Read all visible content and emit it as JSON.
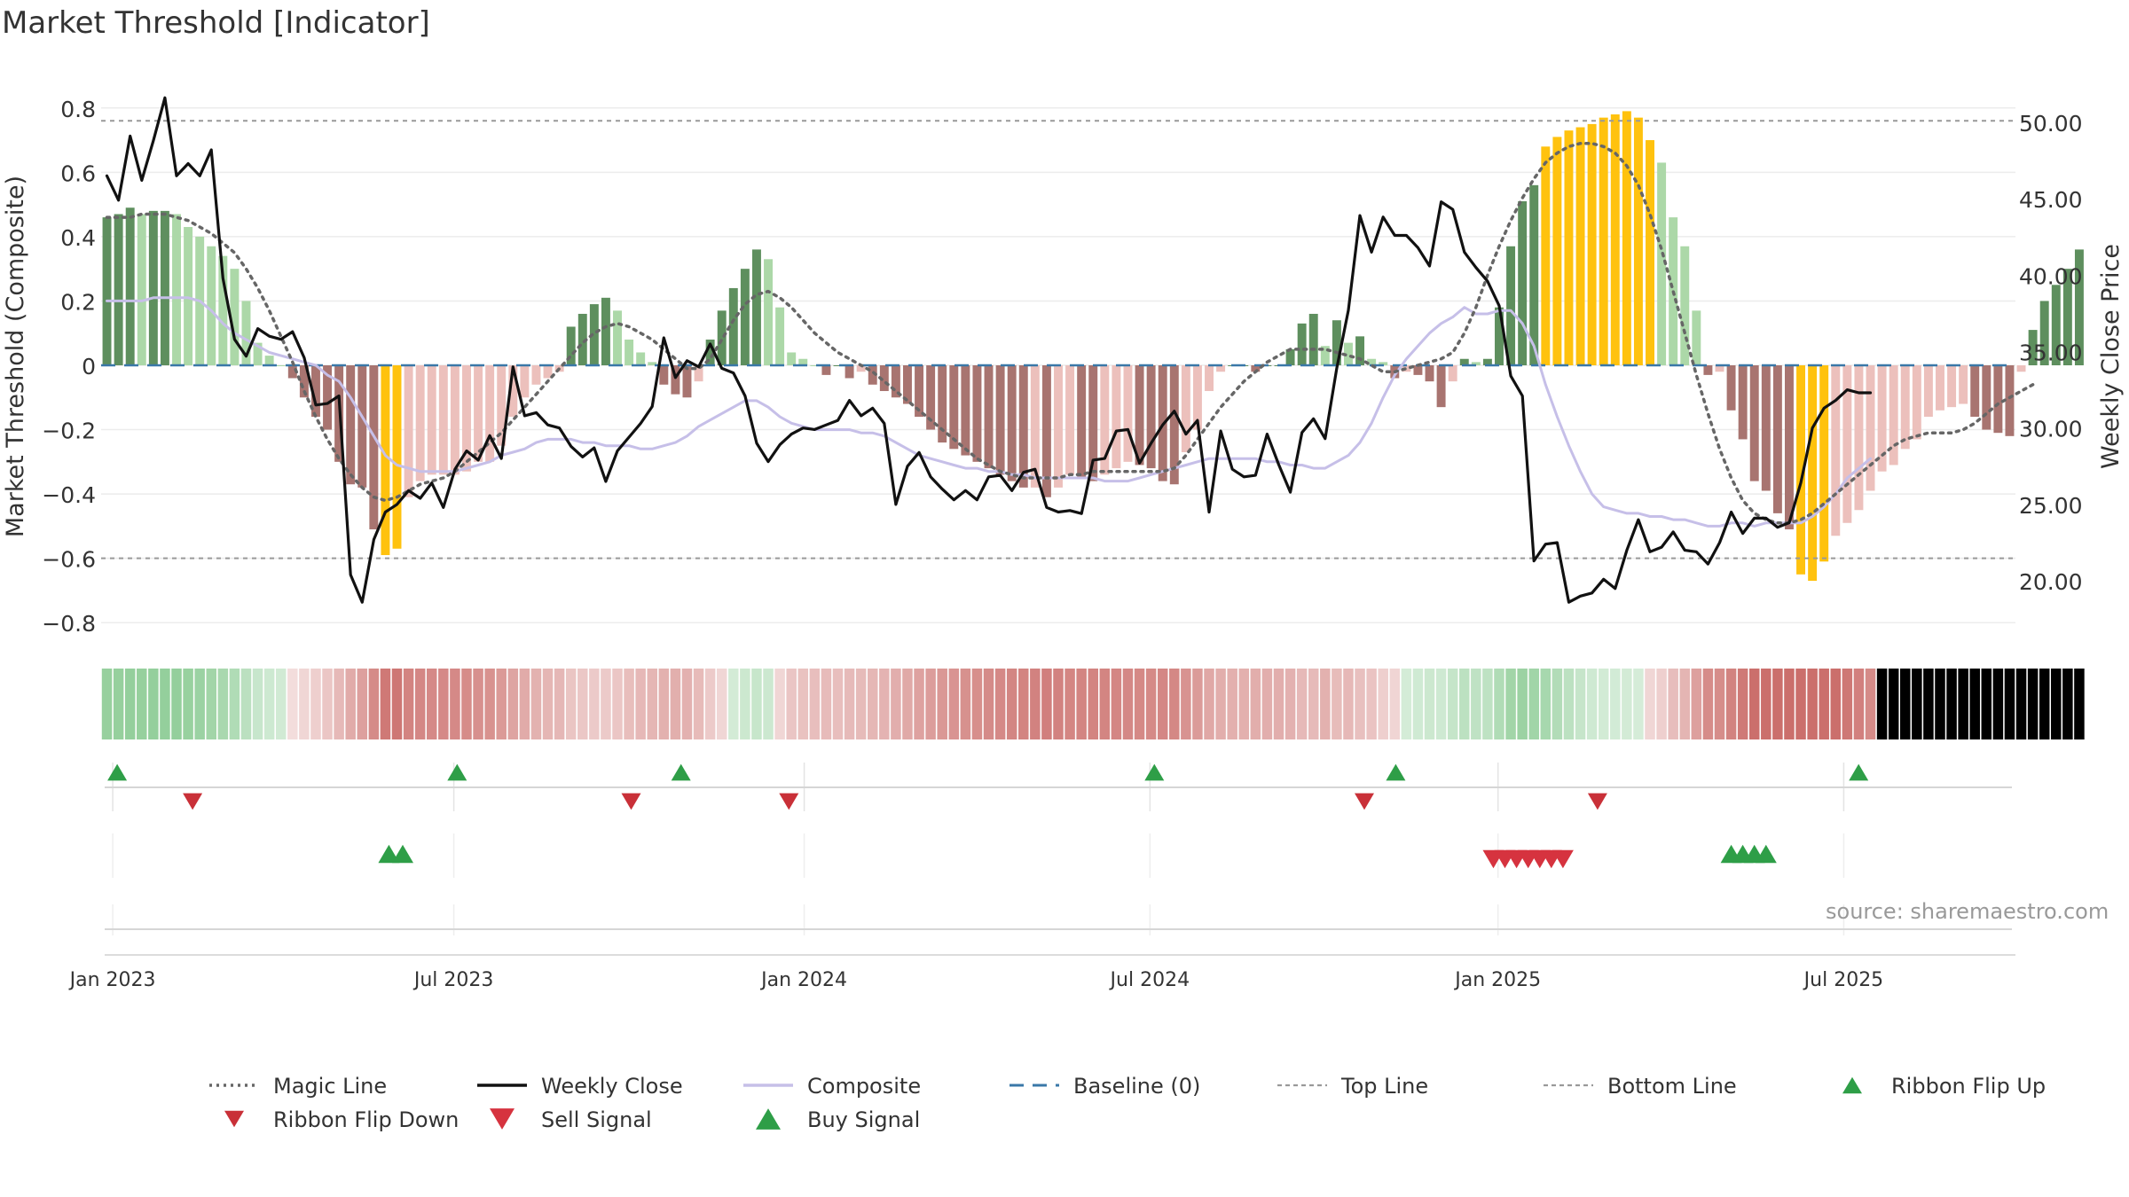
{
  "title": "Market Threshold [Indicator]",
  "source": "source: sharemaestro.com",
  "colors": {
    "magic": "#666666",
    "close": "#111111",
    "composite": "#c6bfe8",
    "baseline": "#3a78a8",
    "refline": "#999999",
    "buy": "#2e9e47",
    "sell": "#d6333f",
    "flipUp": "#2e9e47",
    "flipDown": "#c93038",
    "barGreenDark": "#5e8f5e",
    "barGreenLight": "#acd8a8",
    "barRedDark": "#a87470",
    "barRedLight": "#ecc0bc",
    "barYellow": "#ffc20e"
  },
  "chart_data": {
    "type": "bar",
    "title": "Market Threshold [Indicator]",
    "ylabel": "Market Threshold (Composite)",
    "y2label": "Weekly Close Price",
    "ylim": [
      -0.86,
      0.86
    ],
    "y2lim": [
      16.0,
      52.2
    ],
    "yticks": [
      0.8,
      0.6,
      0.4,
      0.2,
      0,
      -0.2,
      -0.4,
      -0.6,
      -0.8
    ],
    "ytick_labels": [
      "0.8",
      "0.6",
      "0.4",
      "0.2",
      "0",
      "−0.2",
      "−0.4",
      "−0.6",
      "−0.8"
    ],
    "y2ticks": [
      50,
      45,
      40,
      35,
      30,
      25,
      20
    ],
    "y2tick_labels": [
      "50.00",
      "45.00",
      "40.00",
      "35.00",
      "30.00",
      "25.00",
      "20.00"
    ],
    "xticks": [
      "Jan 2023",
      "Jul 2023",
      "Jan 2024",
      "Jul 2024",
      "Jan 2025",
      "Jul 2025"
    ],
    "xtick_index": [
      1.0,
      30.4,
      60.6,
      90.4,
      120.4,
      150.2
    ],
    "top_line": 0.76,
    "bottom_line": -0.6,
    "baseline": 0,
    "weeks": 165,
    "composite_bars": [
      0.46,
      0.47,
      0.49,
      0.47,
      0.48,
      0.48,
      0.47,
      0.43,
      0.4,
      0.37,
      0.34,
      0.3,
      0.2,
      0.07,
      0.03,
      0,
      -0.04,
      -0.1,
      -0.16,
      -0.2,
      -0.3,
      -0.37,
      -0.38,
      -0.51,
      -0.59,
      -0.57,
      -0.41,
      -0.36,
      -0.34,
      -0.34,
      -0.34,
      -0.33,
      -0.3,
      -0.3,
      -0.25,
      -0.16,
      -0.1,
      -0.06,
      -0.04,
      -0.02,
      0.12,
      0.16,
      0.19,
      0.21,
      0.17,
      0.08,
      0.04,
      0.01,
      -0.06,
      -0.09,
      -0.1,
      -0.05,
      0.08,
      0.17,
      0.24,
      0.3,
      0.36,
      0.33,
      0.18,
      0.04,
      0.02,
      0,
      -0.03,
      0,
      -0.04,
      -0.02,
      -0.06,
      -0.08,
      -0.1,
      -0.12,
      -0.16,
      -0.2,
      -0.24,
      -0.26,
      -0.28,
      -0.3,
      -0.32,
      -0.34,
      -0.36,
      -0.38,
      -0.38,
      -0.41,
      -0.38,
      -0.34,
      -0.35,
      -0.36,
      -0.34,
      -0.32,
      -0.3,
      -0.31,
      -0.32,
      -0.36,
      -0.37,
      -0.27,
      -0.2,
      -0.08,
      -0.02,
      0,
      0,
      -0.02,
      0,
      0,
      0.05,
      0.13,
      0.16,
      0.06,
      0.14,
      0.07,
      0.09,
      0.02,
      0.01,
      -0.04,
      -0.02,
      -0.03,
      -0.05,
      -0.13,
      -0.05,
      0.02,
      0.01,
      0.02,
      0.18,
      0.37,
      0.51,
      0.56,
      0.68,
      0.71,
      0.73,
      0.74,
      0.75,
      0.77,
      0.78,
      0.79,
      0.77,
      0.7,
      0.63,
      0.46,
      0.37,
      0.17,
      -0.03,
      -0.02,
      -0.14,
      -0.23,
      -0.36,
      -0.39,
      -0.46,
      -0.51,
      -0.65,
      -0.67,
      -0.61,
      -0.53,
      -0.49,
      -0.45,
      -0.39,
      -0.33,
      -0.31,
      -0.26,
      -0.23,
      -0.16,
      -0.14,
      -0.13,
      -0.12,
      -0.16,
      -0.2,
      -0.21,
      -0.22,
      -0.02,
      0.11,
      0.2,
      0.25,
      0.3,
      0.36
    ],
    "series": [
      {
        "name": "Magic Line",
        "style": "dotted",
        "values": [
          0.46,
          0.46,
          0.46,
          0.47,
          0.47,
          0.47,
          0.46,
          0.45,
          0.43,
          0.41,
          0.38,
          0.35,
          0.3,
          0.24,
          0.17,
          0.09,
          0.01,
          -0.08,
          -0.16,
          -0.23,
          -0.29,
          -0.34,
          -0.38,
          -0.41,
          -0.42,
          -0.41,
          -0.39,
          -0.37,
          -0.36,
          -0.35,
          -0.33,
          -0.3,
          -0.27,
          -0.24,
          -0.21,
          -0.17,
          -0.13,
          -0.09,
          -0.05,
          -0.01,
          0.03,
          0.07,
          0.1,
          0.12,
          0.13,
          0.12,
          0.1,
          0.08,
          0.05,
          0.02,
          -0.01,
          -0.01,
          0.02,
          0.08,
          0.14,
          0.19,
          0.22,
          0.23,
          0.21,
          0.18,
          0.14,
          0.1,
          0.07,
          0.04,
          0.02,
          0,
          -0.02,
          -0.05,
          -0.08,
          -0.11,
          -0.14,
          -0.17,
          -0.2,
          -0.23,
          -0.26,
          -0.29,
          -0.31,
          -0.33,
          -0.34,
          -0.35,
          -0.35,
          -0.35,
          -0.35,
          -0.34,
          -0.34,
          -0.33,
          -0.33,
          -0.33,
          -0.33,
          -0.33,
          -0.33,
          -0.33,
          -0.32,
          -0.28,
          -0.23,
          -0.18,
          -0.13,
          -0.09,
          -0.05,
          -0.02,
          0.01,
          0.03,
          0.05,
          0.05,
          0.05,
          0.05,
          0.04,
          0.03,
          0.02,
          0,
          -0.02,
          -0.02,
          -0.01,
          0,
          0.01,
          0.02,
          0.04,
          0.1,
          0.18,
          0.28,
          0.37,
          0.45,
          0.52,
          0.58,
          0.63,
          0.66,
          0.68,
          0.69,
          0.69,
          0.68,
          0.66,
          0.62,
          0.56,
          0.47,
          0.36,
          0.23,
          0.1,
          -0.03,
          -0.15,
          -0.26,
          -0.35,
          -0.42,
          -0.46,
          -0.48,
          -0.49,
          -0.49,
          -0.48,
          -0.46,
          -0.43,
          -0.4,
          -0.37,
          -0.34,
          -0.31,
          -0.28,
          -0.25,
          -0.23,
          -0.22,
          -0.21,
          -0.21,
          -0.21,
          -0.2,
          -0.18,
          -0.15,
          -0.12,
          -0.1,
          -0.08,
          -0.06
        ]
      },
      {
        "name": "Weekly Close",
        "style": "solid",
        "axis": "right",
        "values": [
          46.5,
          44.9,
          49.1,
          46.2,
          48.8,
          51.6,
          46.5,
          47.3,
          46.5,
          48.2,
          39.8,
          35.8,
          34.7,
          36.5,
          36.0,
          35.8,
          36.3,
          34.6,
          31.5,
          31.6,
          32.1,
          20.4,
          18.6,
          22.7,
          24.5,
          25.0,
          25.9,
          25.4,
          26.4,
          24.8,
          27.3,
          28.5,
          27.9,
          29.5,
          28.0,
          34.0,
          30.8,
          31.0,
          30.2,
          30.0,
          28.8,
          28.1,
          28.7,
          26.5,
          28.5,
          29.4,
          30.3,
          31.4,
          35.9,
          33.3,
          34.4,
          34.0,
          35.5,
          33.9,
          33.6,
          32.1,
          29.0,
          27.8,
          28.9,
          29.6,
          30.0,
          29.9,
          30.2,
          30.5,
          31.8,
          30.8,
          31.3,
          30.3,
          25.0,
          27.5,
          28.4,
          26.8,
          26.0,
          25.3,
          25.9,
          25.3,
          26.8,
          26.9,
          25.9,
          27.1,
          27.3,
          24.8,
          24.5,
          24.6,
          24.4,
          27.9,
          28.0,
          29.8,
          29.9,
          27.7,
          29.0,
          30.2,
          31.1,
          29.6,
          30.5,
          24.5,
          29.8,
          27.3,
          26.8,
          26.9,
          29.6,
          27.6,
          25.8,
          29.7,
          30.6,
          29.3,
          33.9,
          37.7,
          43.9,
          41.5,
          43.8,
          42.6,
          42.6,
          41.8,
          40.6,
          44.8,
          44.3,
          41.5,
          40.5,
          39.6,
          38.0,
          33.4,
          32.1,
          21.3,
          22.4,
          22.5,
          18.6,
          19.0,
          19.2,
          20.1,
          19.5,
          22.0,
          24.0,
          21.9,
          22.2,
          23.2,
          22.0,
          21.9,
          21.1,
          22.5,
          24.5,
          23.1,
          24.1,
          24.1,
          23.5,
          23.8,
          26.4,
          30.0,
          31.3,
          31.8,
          32.5,
          32.3,
          32.3
        ]
      },
      {
        "name": "Composite",
        "style": "solid",
        "values": [
          0.2,
          0.2,
          0.2,
          0.2,
          0.21,
          0.21,
          0.21,
          0.21,
          0.2,
          0.17,
          0.13,
          0.1,
          0.08,
          0.06,
          0.04,
          0.03,
          0.02,
          0.01,
          0,
          -0.03,
          -0.05,
          -0.1,
          -0.16,
          -0.22,
          -0.28,
          -0.31,
          -0.32,
          -0.33,
          -0.33,
          -0.33,
          -0.33,
          -0.32,
          -0.31,
          -0.3,
          -0.28,
          -0.27,
          -0.26,
          -0.24,
          -0.23,
          -0.23,
          -0.23,
          -0.24,
          -0.24,
          -0.25,
          -0.25,
          -0.25,
          -0.26,
          -0.26,
          -0.25,
          -0.24,
          -0.22,
          -0.19,
          -0.17,
          -0.15,
          -0.13,
          -0.11,
          -0.11,
          -0.13,
          -0.16,
          -0.18,
          -0.19,
          -0.2,
          -0.2,
          -0.2,
          -0.2,
          -0.21,
          -0.21,
          -0.22,
          -0.24,
          -0.26,
          -0.28,
          -0.29,
          -0.3,
          -0.31,
          -0.32,
          -0.32,
          -0.33,
          -0.33,
          -0.34,
          -0.34,
          -0.35,
          -0.35,
          -0.35,
          -0.35,
          -0.35,
          -0.35,
          -0.36,
          -0.36,
          -0.36,
          -0.35,
          -0.34,
          -0.33,
          -0.32,
          -0.31,
          -0.3,
          -0.29,
          -0.29,
          -0.29,
          -0.29,
          -0.29,
          -0.3,
          -0.3,
          -0.31,
          -0.31,
          -0.32,
          -0.32,
          -0.3,
          -0.28,
          -0.24,
          -0.18,
          -0.1,
          -0.03,
          0.02,
          0.06,
          0.1,
          0.13,
          0.15,
          0.18,
          0.16,
          0.16,
          0.17,
          0.17,
          0.13,
          0.06,
          -0.06,
          -0.16,
          -0.25,
          -0.33,
          -0.4,
          -0.44,
          -0.45,
          -0.46,
          -0.46,
          -0.47,
          -0.47,
          -0.48,
          -0.48,
          -0.49,
          -0.5,
          -0.5,
          -0.49,
          -0.49,
          -0.5,
          -0.49,
          -0.49,
          -0.49,
          -0.49,
          -0.47,
          -0.44,
          -0.4,
          -0.35,
          -0.32,
          -0.29
        ]
      },
      {
        "name": "Baseline (0)",
        "style": "dashed",
        "value": 0
      },
      {
        "name": "Top Line",
        "style": "dotted",
        "value": 0.76
      },
      {
        "name": "Bottom Line",
        "style": "dotted",
        "value": -0.6
      }
    ],
    "ribbon_flip_up": [
      1,
      30.3,
      49.6,
      90.4,
      111.2,
      151.1
    ],
    "ribbon_flip_down": [
      7.5,
      45.3,
      58.9,
      108.5,
      128.6
    ],
    "buy_signal": [
      24.3,
      25.5,
      140,
      141,
      142,
      143
    ],
    "sell_signal": [
      119.5,
      120.5,
      121.5,
      122.5,
      123.5,
      124.5,
      125.5
    ],
    "legend": {
      "placement": "bottom",
      "items": [
        "Magic Line",
        "Weekly Close",
        "Composite",
        "Baseline (0)",
        "Top Line",
        "Bottom Line",
        "Ribbon Flip Up",
        "Ribbon Flip Down",
        "Sell Signal",
        "Buy Signal"
      ]
    }
  }
}
